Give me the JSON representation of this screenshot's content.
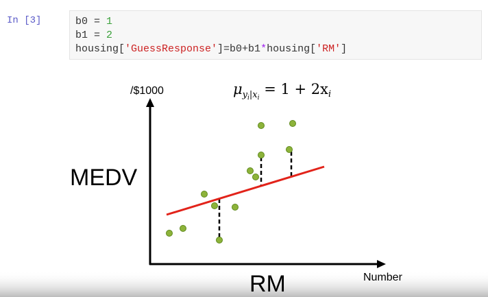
{
  "prompt": "In [3]",
  "code": {
    "lines": [
      [
        "b0 = ",
        "1"
      ],
      [
        "b1 = ",
        "2"
      ],
      [
        "housing[",
        "'GuessResponse'",
        "]=b0+b1",
        "*",
        "housing[",
        "'RM'",
        "]"
      ]
    ]
  },
  "slide": {
    "y_unit": "/$1000",
    "y_label": "MEDV",
    "x_label": "RM",
    "x_unit": "Number",
    "equation": {
      "mu": "μ",
      "y": "y",
      "i1": "i",
      "bar_x": "|x",
      "i2": "i",
      "rhs": " = 1 + 2x",
      "i3": "i"
    }
  }
}
